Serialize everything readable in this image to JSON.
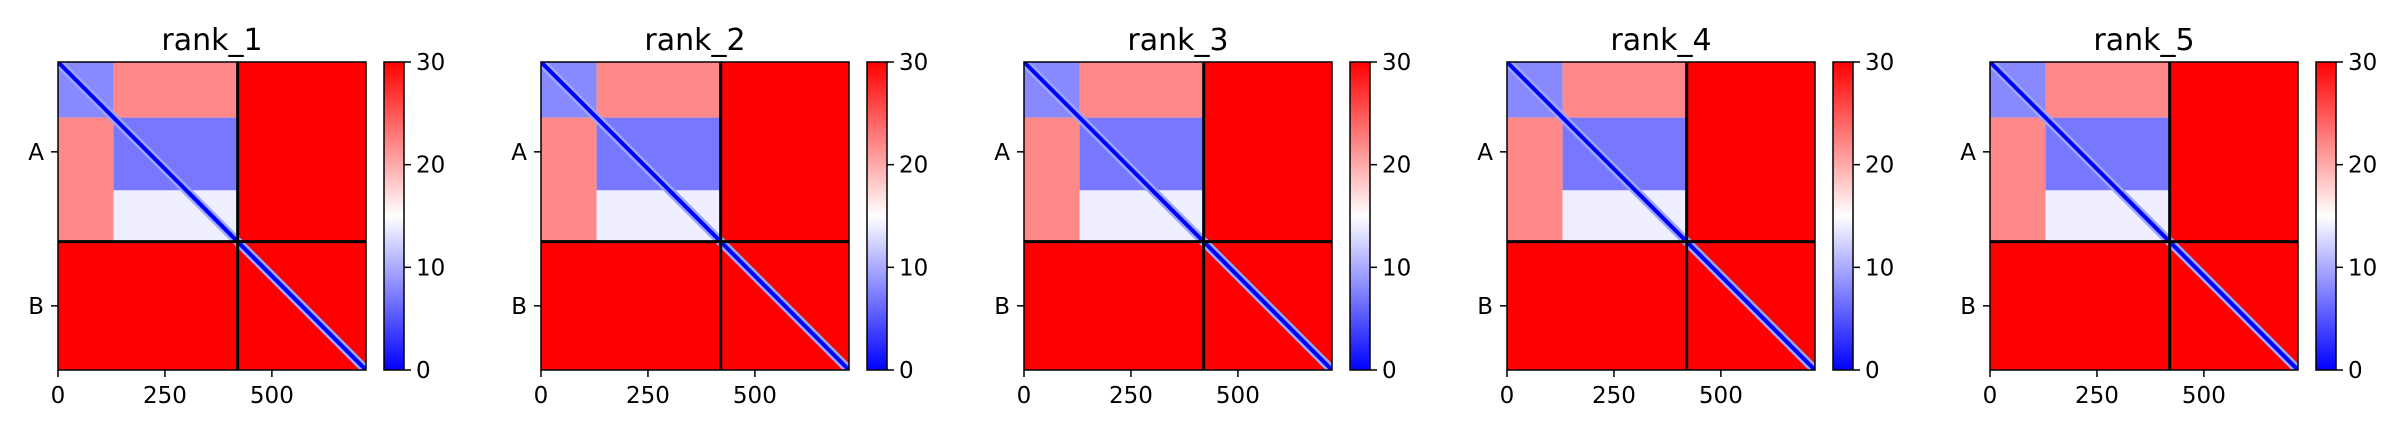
{
  "chart_data": [
    {
      "type": "heatmap",
      "title": "rank_1",
      "chain_labels": [
        "A",
        "B"
      ],
      "chain_boundary": 420,
      "sequence_length": 720,
      "xticks": [
        0,
        250,
        500
      ],
      "xlim": [
        0,
        720
      ],
      "colorbar": {
        "ticks": [
          0,
          10,
          20,
          30
        ],
        "range": [
          0,
          30
        ],
        "colormap": "bwr",
        "colors": [
          "#0000ff",
          "#ffffff",
          "#ff0000"
        ]
      },
      "blocks": [
        {
          "region": "A-A",
          "rows": [
            0,
            130
          ],
          "cols": [
            0,
            130
          ],
          "value": 8
        },
        {
          "region": "A-A",
          "rows": [
            0,
            130
          ],
          "cols": [
            130,
            420
          ],
          "value": 22
        },
        {
          "region": "A-A",
          "rows": [
            130,
            420
          ],
          "cols": [
            0,
            130
          ],
          "value": 22
        },
        {
          "region": "A-A",
          "rows": [
            130,
            300
          ],
          "cols": [
            130,
            420
          ],
          "value": 7
        },
        {
          "region": "A-A",
          "rows": [
            300,
            420
          ],
          "cols": [
            130,
            420
          ],
          "value": 14
        },
        {
          "region": "A-B",
          "rows": [
            0,
            420
          ],
          "cols": [
            420,
            720
          ],
          "value": 30
        },
        {
          "region": "B-A",
          "rows": [
            420,
            720
          ],
          "cols": [
            0,
            420
          ],
          "value": 30
        },
        {
          "region": "B-B",
          "rows": [
            420,
            720
          ],
          "cols": [
            420,
            720
          ],
          "value": 30
        },
        {
          "region": "diagonal",
          "rows": [
            0,
            720
          ],
          "cols": [
            0,
            720
          ],
          "value": 0
        }
      ]
    },
    {
      "type": "heatmap",
      "title": "rank_2",
      "chain_labels": [
        "A",
        "B"
      ],
      "chain_boundary": 420,
      "sequence_length": 720,
      "xticks": [
        0,
        250,
        500
      ],
      "xlim": [
        0,
        720
      ],
      "colorbar": {
        "ticks": [
          0,
          10,
          20,
          30
        ],
        "range": [
          0,
          30
        ],
        "colormap": "bwr",
        "colors": [
          "#0000ff",
          "#ffffff",
          "#ff0000"
        ]
      },
      "blocks": [
        {
          "region": "A-A",
          "rows": [
            0,
            130
          ],
          "cols": [
            0,
            130
          ],
          "value": 8
        },
        {
          "region": "A-A",
          "rows": [
            0,
            130
          ],
          "cols": [
            130,
            420
          ],
          "value": 22
        },
        {
          "region": "A-A",
          "rows": [
            130,
            420
          ],
          "cols": [
            0,
            130
          ],
          "value": 22
        },
        {
          "region": "A-A",
          "rows": [
            130,
            300
          ],
          "cols": [
            130,
            420
          ],
          "value": 7
        },
        {
          "region": "A-A",
          "rows": [
            300,
            420
          ],
          "cols": [
            130,
            420
          ],
          "value": 14
        },
        {
          "region": "A-B",
          "rows": [
            0,
            420
          ],
          "cols": [
            420,
            720
          ],
          "value": 30
        },
        {
          "region": "B-A",
          "rows": [
            420,
            720
          ],
          "cols": [
            0,
            420
          ],
          "value": 30
        },
        {
          "region": "B-B",
          "rows": [
            420,
            720
          ],
          "cols": [
            420,
            720
          ],
          "value": 30
        },
        {
          "region": "diagonal",
          "rows": [
            0,
            720
          ],
          "cols": [
            0,
            720
          ],
          "value": 0
        }
      ]
    },
    {
      "type": "heatmap",
      "title": "rank_3",
      "chain_labels": [
        "A",
        "B"
      ],
      "chain_boundary": 420,
      "sequence_length": 720,
      "xticks": [
        0,
        250,
        500
      ],
      "xlim": [
        0,
        720
      ],
      "colorbar": {
        "ticks": [
          0,
          10,
          20,
          30
        ],
        "range": [
          0,
          30
        ],
        "colormap": "bwr",
        "colors": [
          "#0000ff",
          "#ffffff",
          "#ff0000"
        ]
      },
      "blocks": [
        {
          "region": "A-A",
          "rows": [
            0,
            130
          ],
          "cols": [
            0,
            130
          ],
          "value": 8
        },
        {
          "region": "A-A",
          "rows": [
            0,
            130
          ],
          "cols": [
            130,
            420
          ],
          "value": 22
        },
        {
          "region": "A-A",
          "rows": [
            130,
            420
          ],
          "cols": [
            0,
            130
          ],
          "value": 22
        },
        {
          "region": "A-A",
          "rows": [
            130,
            300
          ],
          "cols": [
            130,
            420
          ],
          "value": 7
        },
        {
          "region": "A-A",
          "rows": [
            300,
            420
          ],
          "cols": [
            130,
            420
          ],
          "value": 14
        },
        {
          "region": "A-B",
          "rows": [
            0,
            420
          ],
          "cols": [
            420,
            720
          ],
          "value": 30
        },
        {
          "region": "B-A",
          "rows": [
            420,
            720
          ],
          "cols": [
            0,
            420
          ],
          "value": 30
        },
        {
          "region": "B-B",
          "rows": [
            420,
            720
          ],
          "cols": [
            420,
            720
          ],
          "value": 30
        },
        {
          "region": "diagonal",
          "rows": [
            0,
            720
          ],
          "cols": [
            0,
            720
          ],
          "value": 0
        }
      ]
    },
    {
      "type": "heatmap",
      "title": "rank_4",
      "chain_labels": [
        "A",
        "B"
      ],
      "chain_boundary": 420,
      "sequence_length": 720,
      "xticks": [
        0,
        250,
        500
      ],
      "xlim": [
        0,
        720
      ],
      "colorbar": {
        "ticks": [
          0,
          10,
          20,
          30
        ],
        "range": [
          0,
          30
        ],
        "colormap": "bwr",
        "colors": [
          "#0000ff",
          "#ffffff",
          "#ff0000"
        ]
      },
      "blocks": [
        {
          "region": "A-A",
          "rows": [
            0,
            130
          ],
          "cols": [
            0,
            130
          ],
          "value": 8
        },
        {
          "region": "A-A",
          "rows": [
            0,
            130
          ],
          "cols": [
            130,
            420
          ],
          "value": 22
        },
        {
          "region": "A-A",
          "rows": [
            130,
            420
          ],
          "cols": [
            0,
            130
          ],
          "value": 22
        },
        {
          "region": "A-A",
          "rows": [
            130,
            300
          ],
          "cols": [
            130,
            420
          ],
          "value": 7
        },
        {
          "region": "A-A",
          "rows": [
            300,
            420
          ],
          "cols": [
            130,
            420
          ],
          "value": 14
        },
        {
          "region": "A-B",
          "rows": [
            0,
            420
          ],
          "cols": [
            420,
            720
          ],
          "value": 30
        },
        {
          "region": "B-A",
          "rows": [
            420,
            720
          ],
          "cols": [
            0,
            420
          ],
          "value": 30
        },
        {
          "region": "B-B",
          "rows": [
            420,
            720
          ],
          "cols": [
            420,
            720
          ],
          "value": 30
        },
        {
          "region": "diagonal",
          "rows": [
            0,
            720
          ],
          "cols": [
            0,
            720
          ],
          "value": 0
        }
      ]
    },
    {
      "type": "heatmap",
      "title": "rank_5",
      "chain_labels": [
        "A",
        "B"
      ],
      "chain_boundary": 420,
      "sequence_length": 720,
      "xticks": [
        0,
        250,
        500
      ],
      "xlim": [
        0,
        720
      ],
      "colorbar": {
        "ticks": [
          0,
          10,
          20,
          30
        ],
        "range": [
          0,
          30
        ],
        "colormap": "bwr",
        "colors": [
          "#0000ff",
          "#ffffff",
          "#ff0000"
        ]
      },
      "blocks": [
        {
          "region": "A-A",
          "rows": [
            0,
            130
          ],
          "cols": [
            0,
            130
          ],
          "value": 8
        },
        {
          "region": "A-A",
          "rows": [
            0,
            130
          ],
          "cols": [
            130,
            420
          ],
          "value": 22
        },
        {
          "region": "A-A",
          "rows": [
            130,
            420
          ],
          "cols": [
            0,
            130
          ],
          "value": 22
        },
        {
          "region": "A-A",
          "rows": [
            130,
            300
          ],
          "cols": [
            130,
            420
          ],
          "value": 7
        },
        {
          "region": "A-A",
          "rows": [
            300,
            420
          ],
          "cols": [
            130,
            420
          ],
          "value": 14
        },
        {
          "region": "A-B",
          "rows": [
            0,
            420
          ],
          "cols": [
            420,
            720
          ],
          "value": 30
        },
        {
          "region": "B-A",
          "rows": [
            420,
            720
          ],
          "cols": [
            0,
            420
          ],
          "value": 30
        },
        {
          "region": "B-B",
          "rows": [
            420,
            720
          ],
          "cols": [
            420,
            720
          ],
          "value": 30
        },
        {
          "region": "diagonal",
          "rows": [
            0,
            720
          ],
          "cols": [
            0,
            720
          ],
          "value": 0
        }
      ]
    }
  ]
}
